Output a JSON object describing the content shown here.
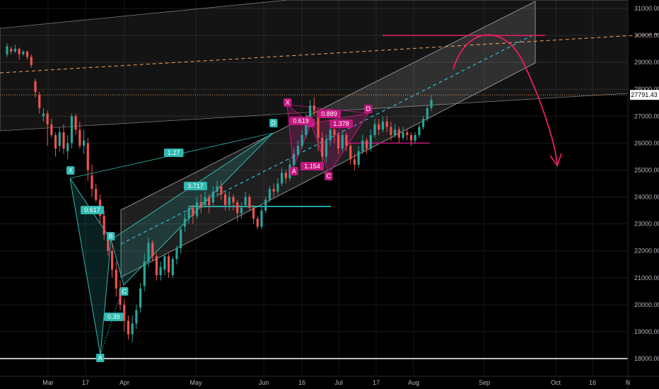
{
  "chart_data": {
    "type": "candlestick",
    "title": "",
    "y_axis": {
      "ticks": [
        18000,
        19000,
        20000,
        21000,
        22000,
        23000,
        24000,
        25000,
        26000,
        27000,
        28000,
        29000,
        30000,
        31000
      ],
      "labels": [
        "18000.00",
        "19000.00",
        "20000.00",
        "21000.00",
        "22000.00",
        "23000.00",
        "24000.00",
        "25000.00",
        "26000.00",
        "27000.00",
        "28000.00",
        "29000.00",
        "30000.00",
        "31000.00"
      ],
      "range": [
        17700,
        31300
      ]
    },
    "x_axis": {
      "labels": [
        "Mar",
        "17",
        "Apr",
        "May",
        "Jun",
        "16",
        "Jul",
        "17",
        "Aug",
        "Sep",
        "Oct",
        "16",
        "N"
      ]
    },
    "current_price": "27791.43",
    "colors": {
      "up": "#26a69a",
      "down": "#ef5350",
      "price_line": "#f4a460",
      "harmonic_teal": "#2fb8b0",
      "harmonic_magenta": "#c2187f",
      "projection": "#e91e63",
      "channel": "#9e9e9e"
    },
    "harmonic_1": {
      "points": [
        "X",
        "A",
        "B",
        "C",
        "D"
      ],
      "ratios": [
        "0.617",
        "0.39",
        "1.27",
        "3.717"
      ]
    },
    "harmonic_2": {
      "points": [
        "X",
        "A",
        "B",
        "C",
        "D"
      ],
      "ratios": [
        "0.619",
        "0.889",
        "1.154",
        "1.378"
      ]
    },
    "levels": {
      "support_low": 18000,
      "resistance_top": 30000,
      "horizontal_1": 23650,
      "horizontal_2": 26000
    },
    "candles": [
      [
        29300,
        29600,
        29700,
        29200
      ],
      [
        29500,
        29400,
        29600,
        29300
      ],
      [
        29400,
        29500,
        29650,
        29350
      ],
      [
        29500,
        29300,
        29550,
        29100
      ],
      [
        29300,
        29400,
        29450,
        29250
      ],
      [
        29400,
        29200,
        29450,
        29100
      ],
      [
        29200,
        28900,
        29300,
        28800
      ],
      [
        28300,
        27900,
        28400,
        27700
      ],
      [
        27800,
        27300,
        27900,
        27100
      ],
      [
        27000,
        27100,
        27300,
        26800
      ],
      [
        27100,
        26700,
        27200,
        25900
      ],
      [
        26700,
        26300,
        26900,
        26200
      ],
      [
        26300,
        25800,
        26400,
        25500
      ],
      [
        25900,
        26400,
        26600,
        25700
      ],
      [
        26400,
        25800,
        26700,
        25600
      ],
      [
        25700,
        26000,
        26300,
        25400
      ],
      [
        26000,
        27000,
        27100,
        25800
      ],
      [
        27000,
        26500,
        27100,
        26300
      ],
      [
        26500,
        25900,
        26800,
        25800
      ],
      [
        25900,
        26100,
        26500,
        25600
      ],
      [
        26000,
        25000,
        26200,
        24600
      ],
      [
        24800,
        24300,
        25200,
        24000
      ],
      [
        24300,
        23900,
        24500,
        23800
      ],
      [
        23900,
        23300,
        24100,
        23000
      ],
      [
        23300,
        22600,
        23500,
        22400
      ],
      [
        22500,
        22000,
        22700,
        21800
      ],
      [
        22000,
        21300,
        22300,
        21000
      ],
      [
        21300,
        20600,
        21600,
        20300
      ],
      [
        20600,
        20000,
        20900,
        19800
      ],
      [
        20000,
        19400,
        20200,
        19000
      ],
      [
        19400,
        18900,
        19600,
        18700
      ],
      [
        18900,
        19300,
        19600,
        18600
      ],
      [
        19300,
        19800,
        20000,
        19100
      ],
      [
        19900,
        20600,
        20800,
        19700
      ],
      [
        20700,
        21600,
        21900,
        20500
      ],
      [
        21600,
        22300,
        22500,
        21400
      ],
      [
        22300,
        21800,
        22400,
        21600
      ],
      [
        21800,
        21100,
        21900,
        20900
      ],
      [
        21100,
        21400,
        21600,
        20900
      ],
      [
        21300,
        21800,
        21900,
        21100
      ],
      [
        21800,
        21200,
        21900,
        21000
      ],
      [
        21100,
        21700,
        21800,
        21000
      ],
      [
        21700,
        22100,
        22200,
        21500
      ],
      [
        22100,
        22800,
        22900,
        21900
      ],
      [
        22900,
        23200,
        23400,
        22700
      ],
      [
        23200,
        23600,
        23700,
        23000
      ],
      [
        23600,
        23300,
        23700,
        23000
      ],
      [
        23300,
        23800,
        24000,
        23200
      ],
      [
        23800,
        23600,
        24100,
        23400
      ],
      [
        23700,
        24000,
        24200,
        23600
      ],
      [
        24000,
        23700,
        24100,
        23400
      ],
      [
        23800,
        24200,
        24400,
        23700
      ],
      [
        24200,
        24400,
        24600,
        24000
      ],
      [
        24400,
        24100,
        24600,
        23900
      ],
      [
        24100,
        23700,
        24200,
        23500
      ],
      [
        23700,
        24000,
        24200,
        23500
      ],
      [
        24000,
        23800,
        24100,
        23500
      ],
      [
        23800,
        23400,
        23900,
        23100
      ],
      [
        23400,
        23600,
        23800,
        23200
      ],
      [
        23700,
        24000,
        24200,
        23600
      ],
      [
        24000,
        23600,
        24100,
        23500
      ],
      [
        23600,
        23200,
        23700,
        23000
      ],
      [
        23200,
        22900,
        23300,
        22800
      ],
      [
        22900,
        23500,
        23700,
        22800
      ],
      [
        23500,
        23900,
        24000,
        23400
      ],
      [
        23900,
        24300,
        24400,
        23800
      ],
      [
        24300,
        24200,
        24500,
        24000
      ],
      [
        24200,
        24500,
        24700,
        24100
      ],
      [
        24500,
        24900,
        25100,
        24400
      ],
      [
        24900,
        24700,
        25000,
        24500
      ],
      [
        24700,
        25200,
        25400,
        24600
      ],
      [
        25200,
        25600,
        25800,
        25100
      ],
      [
        25600,
        25900,
        26100,
        25500
      ],
      [
        25900,
        26300,
        26500,
        25800
      ],
      [
        26300,
        26900,
        27100,
        26200
      ],
      [
        26900,
        27400,
        27600,
        26800
      ],
      [
        27400,
        27200,
        27700,
        27000
      ],
      [
        27200,
        26200,
        27300,
        25700
      ],
      [
        26200,
        25500,
        26400,
        25100
      ],
      [
        25500,
        26100,
        26300,
        25300
      ],
      [
        26100,
        26500,
        26700,
        25900
      ],
      [
        26500,
        26300,
        26800,
        26000
      ],
      [
        26300,
        25800,
        26400,
        25600
      ],
      [
        25800,
        26300,
        26500,
        25700
      ],
      [
        26300,
        25900,
        26400,
        25700
      ],
      [
        25900,
        25400,
        26000,
        25200
      ],
      [
        25400,
        25200,
        25600,
        25000
      ],
      [
        25200,
        25700,
        25900,
        25100
      ],
      [
        25700,
        26100,
        26300,
        25600
      ],
      [
        26100,
        25800,
        26200,
        25600
      ],
      [
        25800,
        26300,
        26500,
        25700
      ],
      [
        26300,
        26700,
        26900,
        26200
      ],
      [
        26700,
        26500,
        26900,
        26300
      ],
      [
        26500,
        26800,
        27000,
        26400
      ],
      [
        26800,
        26600,
        27000,
        26400
      ],
      [
        26600,
        26300,
        26800,
        26100
      ],
      [
        26300,
        26500,
        26700,
        26200
      ],
      [
        26500,
        26200,
        26600,
        26000
      ],
      [
        26200,
        26400,
        26600,
        26100
      ],
      [
        26400,
        26300,
        26500,
        26100
      ],
      [
        26300,
        26100,
        26400,
        25900
      ],
      [
        26100,
        26300,
        26400,
        26000
      ],
      [
        26300,
        26600,
        26700,
        26200
      ],
      [
        26600,
        26900,
        27000,
        26500
      ],
      [
        26900,
        27300,
        27400,
        26800
      ],
      [
        27300,
        27600,
        27800,
        27200
      ]
    ]
  }
}
